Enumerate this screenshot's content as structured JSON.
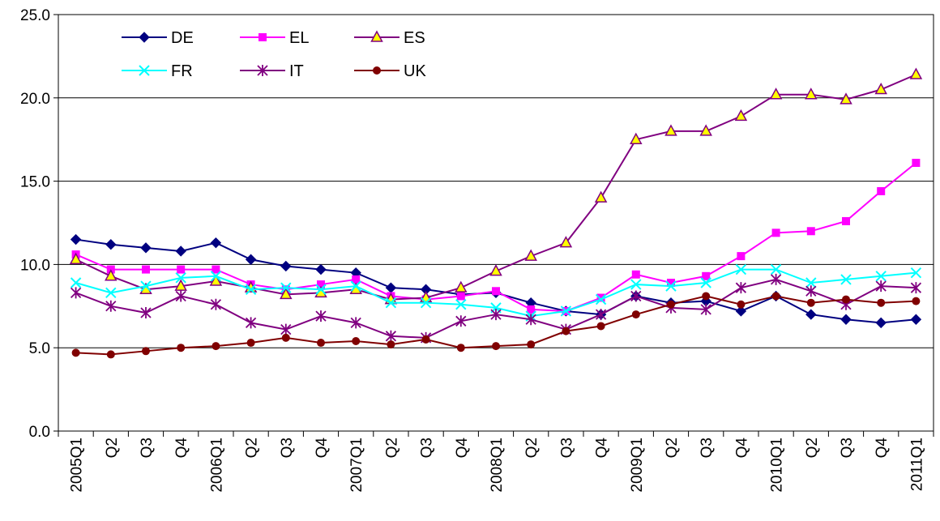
{
  "chart_data": {
    "type": "line",
    "categories": [
      "2005Q1",
      "Q2",
      "Q3",
      "Q4",
      "2006Q1",
      "Q2",
      "Q3",
      "Q4",
      "2007Q1",
      "Q2",
      "Q3",
      "Q4",
      "2008Q1",
      "Q2",
      "Q3",
      "Q4",
      "2009Q1",
      "Q2",
      "Q3",
      "Q4",
      "2010Q1",
      "Q2",
      "Q3",
      "Q4",
      "2011Q1"
    ],
    "ylim": [
      0,
      25
    ],
    "yticks": [
      "0.0",
      "5.0",
      "10.0",
      "15.0",
      "20.0",
      "25.0"
    ],
    "grid": true,
    "legend_position": "top-left",
    "series": [
      {
        "name": "DE",
        "color": "#000080",
        "marker": "diamond",
        "values": [
          11.5,
          11.2,
          11.0,
          10.8,
          11.3,
          10.3,
          9.9,
          9.7,
          9.5,
          8.6,
          8.5,
          8.2,
          8.3,
          7.7,
          7.2,
          7.0,
          8.1,
          7.7,
          7.8,
          7.2,
          8.1,
          7.0,
          6.7,
          6.5,
          6.7
        ]
      },
      {
        "name": "EL",
        "color": "#ff00ff",
        "marker": "square",
        "values": [
          10.6,
          9.7,
          9.7,
          9.7,
          9.7,
          8.8,
          8.5,
          8.8,
          9.1,
          8.1,
          7.9,
          8.1,
          8.4,
          7.3,
          7.2,
          8.0,
          9.4,
          8.9,
          9.3,
          10.5,
          11.9,
          12.0,
          12.6,
          14.4,
          16.1
        ]
      },
      {
        "name": "ES",
        "color": "#800080",
        "marker": "triangle",
        "fill": "#ffff00",
        "values": [
          10.3,
          9.3,
          8.5,
          8.7,
          9.0,
          8.6,
          8.2,
          8.3,
          8.5,
          7.9,
          8.0,
          8.6,
          9.6,
          10.5,
          11.3,
          14.0,
          17.5,
          18.0,
          18.0,
          18.9,
          20.2,
          20.2,
          19.9,
          20.5,
          21.4
        ]
      },
      {
        "name": "FR",
        "color": "#00ffff",
        "marker": "x",
        "values": [
          8.9,
          8.3,
          8.7,
          9.2,
          9.3,
          8.5,
          8.6,
          8.5,
          8.7,
          7.7,
          7.7,
          7.6,
          7.4,
          6.9,
          7.2,
          7.9,
          8.8,
          8.7,
          8.9,
          9.7,
          9.7,
          8.9,
          9.1,
          9.3,
          9.5
        ]
      },
      {
        "name": "IT",
        "color": "#800080",
        "marker": "star",
        "values": [
          8.3,
          7.5,
          7.1,
          8.1,
          7.6,
          6.5,
          6.1,
          6.9,
          6.5,
          5.7,
          5.6,
          6.6,
          7.0,
          6.7,
          6.1,
          7.0,
          8.1,
          7.4,
          7.3,
          8.6,
          9.1,
          8.4,
          7.6,
          8.7,
          8.6
        ]
      },
      {
        "name": "UK",
        "color": "#800000",
        "marker": "circle",
        "values": [
          4.7,
          4.6,
          4.8,
          5.0,
          5.1,
          5.3,
          5.6,
          5.3,
          5.4,
          5.2,
          5.5,
          5.0,
          5.1,
          5.2,
          6.0,
          6.3,
          7.0,
          7.6,
          8.1,
          7.6,
          8.1,
          7.7,
          7.9,
          7.7,
          7.8
        ]
      }
    ]
  }
}
